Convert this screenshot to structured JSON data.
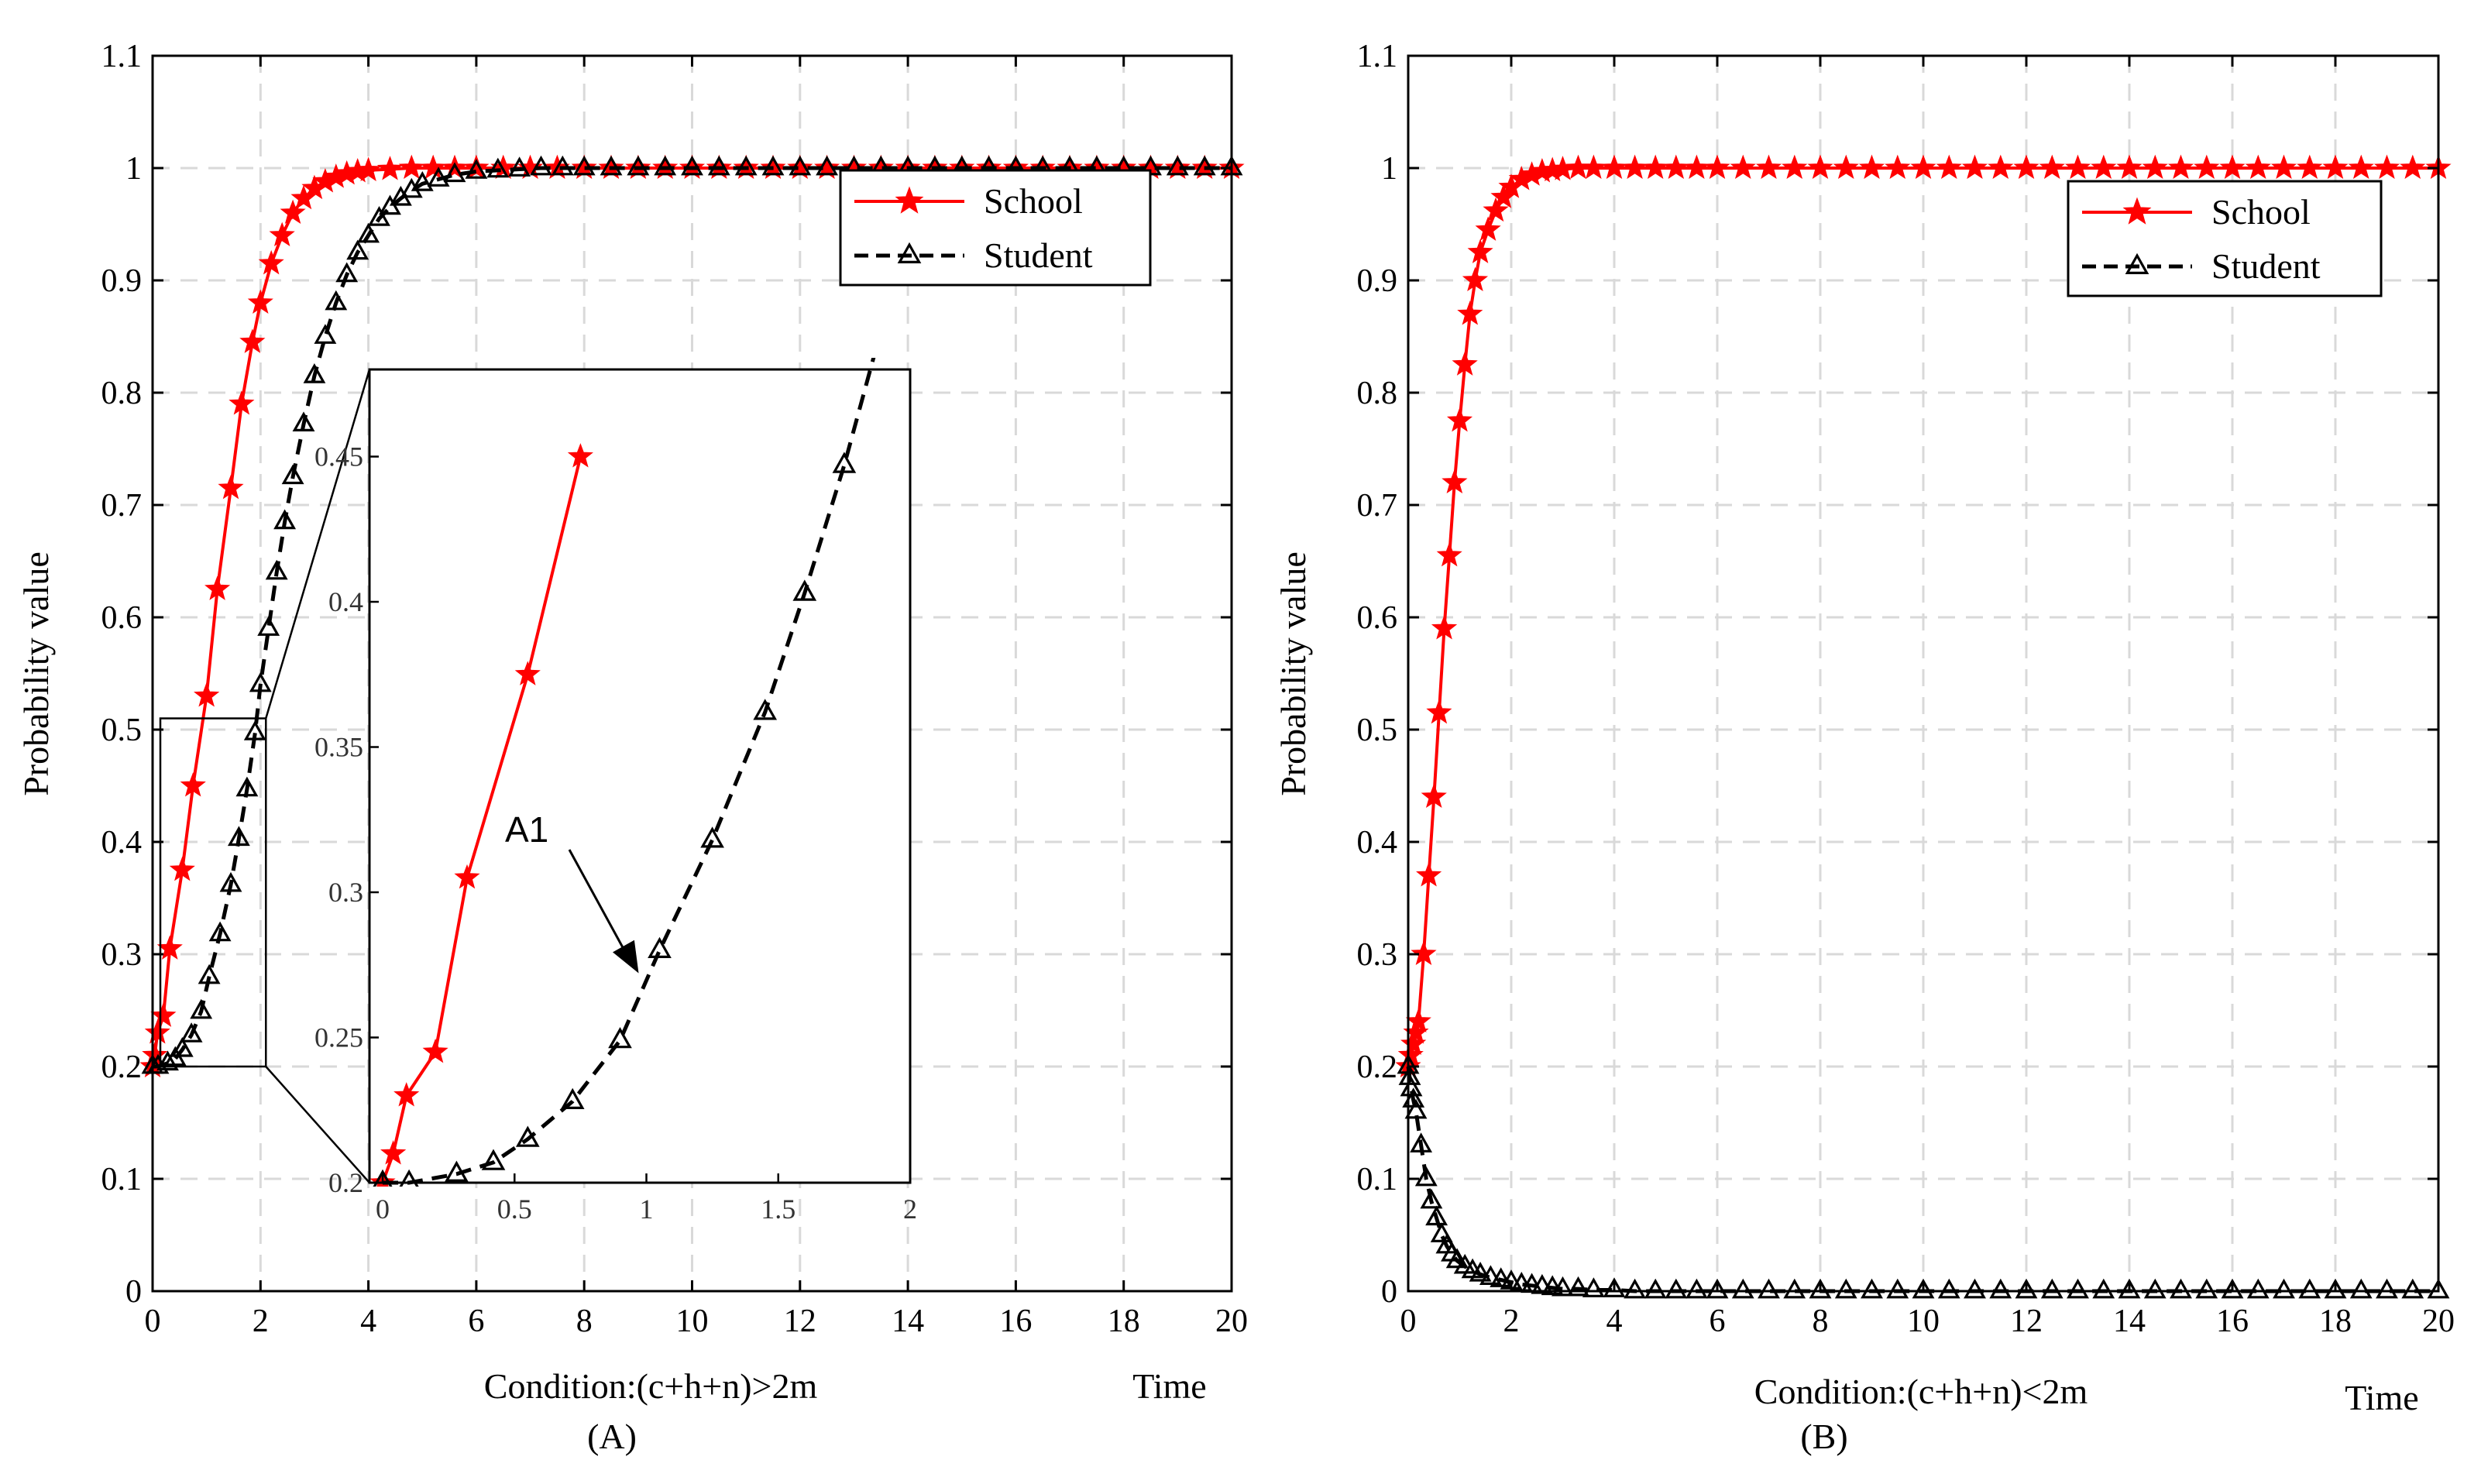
{
  "chart_data": [
    {
      "id": "A",
      "type": "line",
      "panel_label": "(A)",
      "xlabel": "Condition:(c+h+n)>2m",
      "xlabel_right": "Time",
      "ylabel": "Probability value",
      "xlim": [
        0,
        20
      ],
      "ylim": [
        0,
        1.1
      ],
      "xticks": [
        0,
        2,
        4,
        6,
        8,
        10,
        12,
        14,
        16,
        18,
        20
      ],
      "yticks": [
        0,
        0.1,
        0.2,
        0.3,
        0.4,
        0.5,
        0.6,
        0.7,
        0.8,
        0.9,
        1,
        1.1
      ],
      "ytick_labels": [
        "0",
        "0.1",
        "0.2",
        "0.3",
        "0.4",
        "0.5",
        "0.6",
        "0.7",
        "0.8",
        "0.9",
        "1",
        "1.1"
      ],
      "grid": true,
      "legend_position": "top-right",
      "series": [
        {
          "name": "School",
          "color": "#ff0000",
          "marker": "star",
          "linestyle": "solid",
          "x": [
            0,
            0.04,
            0.09,
            0.2,
            0.32,
            0.55,
            0.75,
            1.0,
            1.2,
            1.45,
            1.65,
            1.85,
            2.0,
            2.2,
            2.4,
            2.6,
            2.8,
            3.0,
            3.2,
            3.4,
            3.6,
            3.8,
            4.0,
            4.4,
            4.8,
            5.2,
            5.6,
            6.0,
            6.5,
            7.0,
            7.5,
            8.0,
            8.5,
            9.0,
            9.5,
            10.0,
            10.5,
            11.0,
            11.5,
            12.0,
            12.5,
            13.0,
            13.5,
            14.0,
            14.5,
            15.0,
            15.5,
            16.0,
            16.5,
            17.0,
            17.5,
            18.0,
            18.5,
            19.0,
            19.5,
            20.0
          ],
          "y": [
            0.2,
            0.21,
            0.23,
            0.245,
            0.305,
            0.375,
            0.45,
            0.53,
            0.625,
            0.715,
            0.79,
            0.845,
            0.88,
            0.915,
            0.94,
            0.96,
            0.973,
            0.982,
            0.988,
            0.992,
            0.995,
            0.997,
            0.998,
            0.999,
            1,
            1,
            1,
            1,
            1,
            1,
            1,
            1,
            1,
            1,
            1,
            1,
            1,
            1,
            1,
            1,
            1,
            1,
            1,
            1,
            1,
            1,
            1,
            1,
            1,
            1,
            1,
            1,
            1,
            1,
            1,
            1
          ]
        },
        {
          "name": "Student",
          "color": "#000000",
          "marker": "triangle",
          "linestyle": "dashed",
          "x": [
            0,
            0.1,
            0.28,
            0.42,
            0.55,
            0.72,
            0.9,
            1.05,
            1.25,
            1.45,
            1.6,
            1.75,
            1.9,
            2.0,
            2.15,
            2.3,
            2.45,
            2.6,
            2.8,
            3.0,
            3.2,
            3.4,
            3.6,
            3.8,
            4.0,
            4.2,
            4.4,
            4.6,
            4.8,
            5.0,
            5.3,
            5.6,
            6.0,
            6.4,
            6.8,
            7.2,
            7.6,
            8.0,
            8.5,
            9.0,
            9.5,
            10.0,
            10.5,
            11.0,
            11.5,
            12.0,
            12.5,
            13.0,
            13.5,
            14.0,
            14.5,
            15.0,
            15.5,
            16.0,
            16.5,
            17.0,
            17.5,
            18.0,
            18.5,
            19.0,
            19.5,
            20.0
          ],
          "y": [
            0.2,
            0.2,
            0.203,
            0.207,
            0.215,
            0.228,
            0.249,
            0.28,
            0.318,
            0.362,
            0.403,
            0.447,
            0.497,
            0.54,
            0.59,
            0.64,
            0.685,
            0.725,
            0.772,
            0.815,
            0.85,
            0.88,
            0.905,
            0.925,
            0.94,
            0.955,
            0.965,
            0.973,
            0.98,
            0.986,
            0.99,
            0.994,
            0.997,
            0.998,
            0.999,
            1,
            1,
            1,
            1,
            1,
            1,
            1,
            1,
            1,
            1,
            1,
            1,
            1,
            1,
            1,
            1,
            1,
            1,
            1,
            1,
            1,
            1,
            1,
            1,
            1,
            1,
            1
          ]
        }
      ],
      "inset": {
        "xlim": [
          -0.05,
          2.0
        ],
        "ylim": [
          0.2,
          0.48
        ],
        "xticks": [
          0,
          0.5,
          1,
          1.5,
          2
        ],
        "xtick_labels": [
          "0",
          "0.5",
          "1",
          "1.5",
          "2"
        ],
        "yticks": [
          0.2,
          0.25,
          0.3,
          0.35,
          0.4,
          0.45
        ],
        "ytick_labels": [
          "0.2",
          "0.25",
          "0.3",
          "0.35",
          "0.4",
          "0.45"
        ],
        "zoom_region": {
          "x": [
            0,
            2.1
          ],
          "y": [
            0.2,
            0.51
          ]
        },
        "annotation": {
          "text": "A1",
          "points_to": [
            1.0,
            0.27
          ]
        }
      }
    },
    {
      "id": "B",
      "type": "line",
      "panel_label": "(B)",
      "xlabel": "Condition:(c+h+n)<2m",
      "xlabel_right": "Time",
      "ylabel": "Probability value",
      "xlim": [
        0,
        20
      ],
      "ylim": [
        0,
        1.1
      ],
      "xticks": [
        0,
        2,
        4,
        6,
        8,
        10,
        12,
        14,
        16,
        18,
        20
      ],
      "yticks": [
        0,
        0.1,
        0.2,
        0.3,
        0.4,
        0.5,
        0.6,
        0.7,
        0.8,
        0.9,
        1,
        1.1
      ],
      "ytick_labels": [
        "0",
        "0.1",
        "0.2",
        "0.3",
        "0.4",
        "0.5",
        "0.6",
        "0.7",
        "0.8",
        "0.9",
        "1",
        "1.1"
      ],
      "grid": true,
      "legend_position": "top-right",
      "series": [
        {
          "name": "School",
          "color": "#ff0000",
          "marker": "star",
          "linestyle": "solid",
          "x": [
            0,
            0.05,
            0.1,
            0.15,
            0.2,
            0.3,
            0.4,
            0.5,
            0.6,
            0.7,
            0.8,
            0.9,
            1.0,
            1.1,
            1.2,
            1.3,
            1.4,
            1.55,
            1.7,
            1.85,
            2.0,
            2.2,
            2.4,
            2.6,
            2.8,
            3.0,
            3.3,
            3.6,
            4.0,
            4.4,
            4.8,
            5.2,
            5.6,
            6.0,
            6.5,
            7.0,
            7.5,
            8.0,
            8.5,
            9.0,
            9.5,
            10.0,
            10.5,
            11.0,
            11.5,
            12.0,
            12.5,
            13.0,
            13.5,
            14.0,
            14.5,
            15.0,
            15.5,
            16.0,
            16.5,
            17.0,
            17.5,
            18.0,
            18.5,
            19.0,
            19.5,
            20.0
          ],
          "y": [
            0.2,
            0.21,
            0.22,
            0.23,
            0.24,
            0.3,
            0.37,
            0.44,
            0.515,
            0.59,
            0.655,
            0.72,
            0.775,
            0.825,
            0.87,
            0.9,
            0.925,
            0.945,
            0.962,
            0.974,
            0.983,
            0.99,
            0.994,
            0.997,
            0.998,
            0.999,
            1,
            1,
            1,
            1,
            1,
            1,
            1,
            1,
            1,
            1,
            1,
            1,
            1,
            1,
            1,
            1,
            1,
            1,
            1,
            1,
            1,
            1,
            1,
            1,
            1,
            1,
            1,
            1,
            1,
            1,
            1,
            1,
            1,
            1,
            1,
            1
          ]
        },
        {
          "name": "Student",
          "color": "#000000",
          "marker": "triangle",
          "linestyle": "dashed",
          "x": [
            0,
            0.03,
            0.06,
            0.1,
            0.15,
            0.25,
            0.35,
            0.45,
            0.55,
            0.65,
            0.75,
            0.85,
            0.95,
            1.1,
            1.25,
            1.4,
            1.6,
            1.8,
            2.0,
            2.2,
            2.4,
            2.6,
            2.8,
            3.0,
            3.3,
            3.6,
            4.0,
            4.4,
            4.8,
            5.2,
            5.6,
            6.0,
            6.5,
            7.0,
            7.5,
            8.0,
            8.5,
            9.0,
            9.5,
            10.0,
            10.5,
            11.0,
            11.5,
            12.0,
            12.5,
            13.0,
            13.5,
            14.0,
            14.5,
            15.0,
            15.5,
            16.0,
            16.5,
            17.0,
            17.5,
            18.0,
            18.5,
            19.0,
            19.5,
            20.0
          ],
          "y": [
            0.2,
            0.19,
            0.18,
            0.17,
            0.16,
            0.13,
            0.1,
            0.08,
            0.065,
            0.05,
            0.04,
            0.033,
            0.027,
            0.022,
            0.018,
            0.015,
            0.012,
            0.01,
            0.008,
            0.006,
            0.005,
            0.004,
            0.003,
            0.002,
            0.002,
            0.001,
            0.001,
            0,
            0,
            0,
            0,
            0,
            0,
            0,
            0,
            0,
            0,
            0,
            0,
            0,
            0,
            0,
            0,
            0,
            0,
            0,
            0,
            0,
            0,
            0,
            0,
            0,
            0,
            0,
            0,
            0,
            0,
            0,
            0,
            0
          ]
        }
      ]
    }
  ]
}
